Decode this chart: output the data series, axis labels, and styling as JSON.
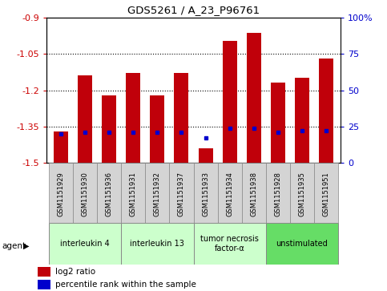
{
  "title": "GDS5261 / A_23_P96761",
  "samples": [
    "GSM1151929",
    "GSM1151930",
    "GSM1151936",
    "GSM1151931",
    "GSM1151932",
    "GSM1151937",
    "GSM1151933",
    "GSM1151934",
    "GSM1151938",
    "GSM1151928",
    "GSM1151935",
    "GSM1151951"
  ],
  "log2_ratio": [
    -1.37,
    -1.14,
    -1.22,
    -1.13,
    -1.22,
    -1.13,
    -1.44,
    -0.995,
    -0.965,
    -1.17,
    -1.15,
    -1.07
  ],
  "percentile_rank": [
    20,
    21,
    21,
    21,
    21,
    21,
    17,
    24,
    24,
    21,
    22,
    22
  ],
  "ylim_left": [
    -1.5,
    -0.9
  ],
  "ylim_right": [
    0,
    100
  ],
  "yticks_left": [
    -1.5,
    -1.35,
    -1.2,
    -1.05,
    -0.9
  ],
  "yticks_right": [
    0,
    25,
    50,
    75,
    100
  ],
  "hlines": [
    -1.05,
    -1.2,
    -1.35
  ],
  "bar_color": "#c0000a",
  "dot_color": "#0000cc",
  "agent_groups": [
    {
      "label": "interleukin 4",
      "start": 0,
      "end": 3,
      "color": "#ccffcc"
    },
    {
      "label": "interleukin 13",
      "start": 3,
      "end": 6,
      "color": "#ccffcc"
    },
    {
      "label": "tumor necrosis\nfactor-α",
      "start": 6,
      "end": 9,
      "color": "#ccffcc"
    },
    {
      "label": "unstimulated",
      "start": 9,
      "end": 12,
      "color": "#66dd66"
    }
  ],
  "legend_bar_label": "log2 ratio",
  "legend_dot_label": "percentile rank within the sample",
  "agent_label": "agent",
  "left_tick_color": "#cc0000",
  "right_tick_color": "#0000cc",
  "bar_width": 0.6,
  "tick_gray": "#c8c8c8",
  "sample_box_color": "#d4d4d4"
}
